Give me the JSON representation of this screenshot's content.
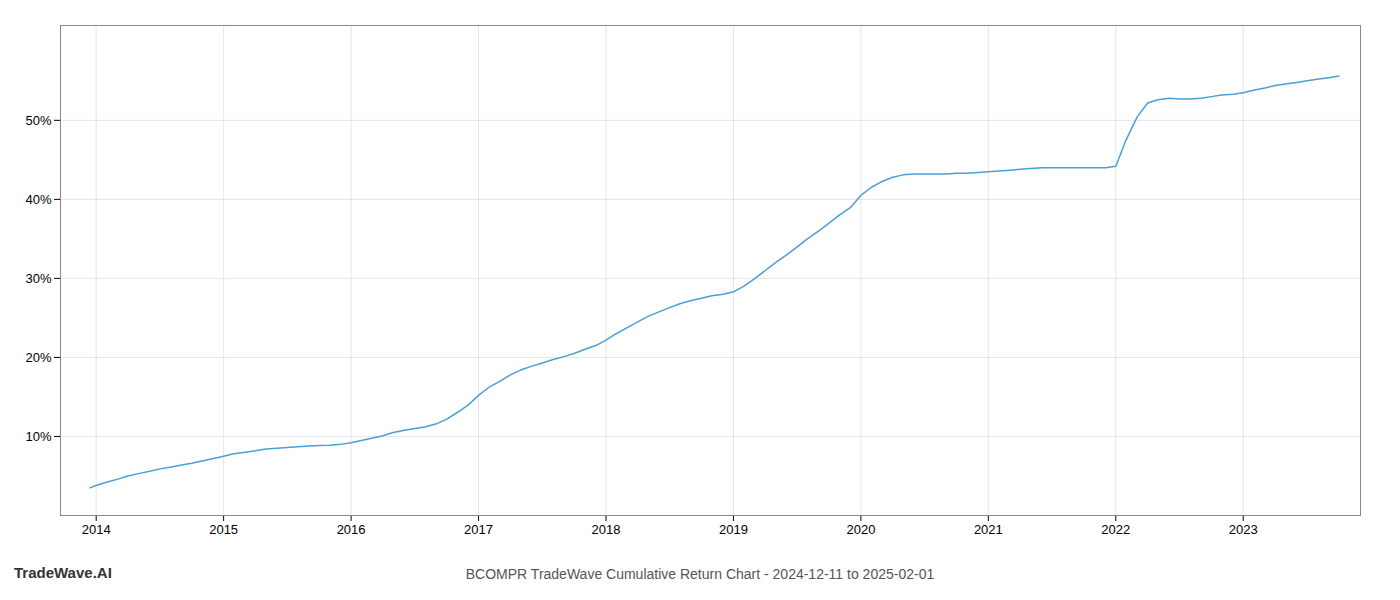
{
  "chart_data": {
    "type": "line",
    "title": "BCOMPR TradeWave Cumulative Return Chart - 2024-12-11 to 2025-02-01",
    "annotations": [
      "TradeWave.AI"
    ],
    "color": "#4a9fd4",
    "grid": true,
    "x": [
      2013.95,
      2014.0,
      2014.08,
      2014.17,
      2014.25,
      2014.33,
      2014.42,
      2014.5,
      2014.58,
      2014.67,
      2014.75,
      2014.83,
      2014.92,
      2015.0,
      2015.08,
      2015.17,
      2015.25,
      2015.33,
      2015.42,
      2015.5,
      2015.58,
      2015.67,
      2015.75,
      2015.83,
      2015.92,
      2016.0,
      2016.08,
      2016.17,
      2016.25,
      2016.33,
      2016.42,
      2016.5,
      2016.58,
      2016.67,
      2016.75,
      2016.83,
      2016.92,
      2017.0,
      2017.08,
      2017.17,
      2017.25,
      2017.33,
      2017.42,
      2017.5,
      2017.58,
      2017.67,
      2017.75,
      2017.83,
      2017.92,
      2018.0,
      2018.08,
      2018.17,
      2018.25,
      2018.33,
      2018.42,
      2018.5,
      2018.58,
      2018.67,
      2018.75,
      2018.83,
      2018.92,
      2019.0,
      2019.08,
      2019.17,
      2019.25,
      2019.33,
      2019.42,
      2019.5,
      2019.58,
      2019.67,
      2019.75,
      2019.83,
      2019.92,
      2020.0,
      2020.08,
      2020.17,
      2020.25,
      2020.33,
      2020.42,
      2020.5,
      2020.58,
      2020.67,
      2020.75,
      2020.83,
      2020.92,
      2021.0,
      2021.08,
      2021.17,
      2021.25,
      2021.33,
      2021.42,
      2021.5,
      2021.58,
      2021.67,
      2021.75,
      2021.83,
      2021.92,
      2022.0,
      2022.08,
      2022.17,
      2022.25,
      2022.33,
      2022.42,
      2022.5,
      2022.58,
      2022.67,
      2022.75,
      2022.83,
      2022.92,
      2023.0,
      2023.08,
      2023.17,
      2023.25,
      2023.33,
      2023.42,
      2023.5,
      2023.58,
      2023.67,
      2023.75
    ],
    "values": [
      3.5,
      3.8,
      4.2,
      4.6,
      5.0,
      5.3,
      5.6,
      5.9,
      6.1,
      6.4,
      6.6,
      6.9,
      7.2,
      7.5,
      7.8,
      8.0,
      8.2,
      8.4,
      8.5,
      8.6,
      8.7,
      8.8,
      8.85,
      8.9,
      9.0,
      9.2,
      9.5,
      9.8,
      10.1,
      10.5,
      10.8,
      11.0,
      11.2,
      11.6,
      12.2,
      13.0,
      14.0,
      15.2,
      16.2,
      17.0,
      17.8,
      18.4,
      18.9,
      19.3,
      19.7,
      20.1,
      20.5,
      21.0,
      21.5,
      22.2,
      23.0,
      23.8,
      24.5,
      25.2,
      25.8,
      26.3,
      26.8,
      27.2,
      27.5,
      27.8,
      28.0,
      28.3,
      29.0,
      30.0,
      31.0,
      32.0,
      33.0,
      34.0,
      35.0,
      36.0,
      37.0,
      38.0,
      39.0,
      40.5,
      41.5,
      42.3,
      42.8,
      43.1,
      43.2,
      43.2,
      43.2,
      43.2,
      43.3,
      43.3,
      43.4,
      43.5,
      43.6,
      43.7,
      43.8,
      43.9,
      44.0,
      44.0,
      44.0,
      44.0,
      44.0,
      44.0,
      44.0,
      44.2,
      47.5,
      50.5,
      52.2,
      52.6,
      52.8,
      52.7,
      52.7,
      52.8,
      53.0,
      53.2,
      53.3,
      53.5,
      53.8,
      54.1,
      54.4,
      54.6,
      54.8,
      55.0,
      55.2,
      55.4,
      55.6
    ],
    "xlim": [
      2013.72,
      2023.92
    ],
    "ylim": [
      0,
      62
    ],
    "xticks": [
      2014,
      2015,
      2016,
      2017,
      2018,
      2019,
      2020,
      2021,
      2022,
      2023
    ],
    "yticks": [
      {
        "value": 10,
        "label": "10%"
      },
      {
        "value": 20,
        "label": "20%"
      },
      {
        "value": 30,
        "label": "30%"
      },
      {
        "value": 40,
        "label": "40%"
      },
      {
        "value": 50,
        "label": "50%"
      }
    ]
  }
}
